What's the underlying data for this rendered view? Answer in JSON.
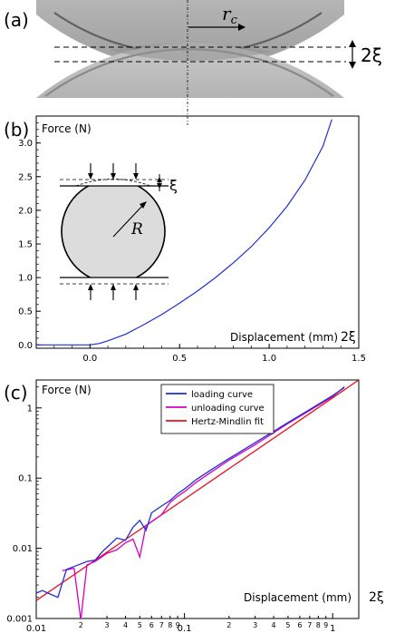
{
  "panel_a": {
    "label": "(a)",
    "radius_label": "r",
    "radius_sub": "c",
    "gap_label": "2ξ"
  },
  "panel_b": {
    "label": "(b)",
    "ylabel": "Force (N)",
    "xlabel": "Displacement (mm)",
    "x_annot": "2ξ",
    "inset_xi": "ξ",
    "inset_R": "R"
  },
  "panel_c": {
    "label": "(c)",
    "ylabel": "Force (N)",
    "xlabel": "Displacement (mm)",
    "x_annot": "2ξ"
  },
  "colors": {
    "loading": "#1f2fd6",
    "unloading": "#d400c4",
    "fit": "#e8111d",
    "sphere_fill": "#d9d9d9"
  },
  "chart_data": [
    {
      "type": "line",
      "panel": "b",
      "ylabel": "Force (N)",
      "xlabel": "Displacement (mm)",
      "xlim": [
        -0.3,
        1.5
      ],
      "ylim": [
        -0.05,
        3.4
      ],
      "xticks": [
        "0.0",
        "0.5",
        "1.0",
        "1.5"
      ],
      "yticks": [
        "0.0",
        "0.5",
        "1.0",
        "1.5",
        "2.0",
        "2.5",
        "3.0"
      ],
      "series": [
        {
          "name": "loading curve",
          "x": [
            -0.3,
            -0.2,
            -0.1,
            -0.05,
            0.0,
            0.05,
            0.1,
            0.2,
            0.3,
            0.4,
            0.5,
            0.6,
            0.7,
            0.8,
            0.9,
            1.0,
            1.1,
            1.2,
            1.3,
            1.35
          ],
          "y": [
            0.0,
            0.0,
            0.0,
            0.0,
            0.0,
            0.02,
            0.06,
            0.16,
            0.3,
            0.45,
            0.62,
            0.8,
            1.0,
            1.22,
            1.46,
            1.74,
            2.06,
            2.45,
            2.95,
            3.35
          ]
        }
      ]
    },
    {
      "type": "line",
      "panel": "c",
      "ylabel": "Force (N)",
      "xlabel": "Displacement (mm)",
      "xscale": "log",
      "yscale": "log",
      "xlim": [
        0.01,
        1.5
      ],
      "ylim": [
        0.001,
        2.5
      ],
      "xticks": [
        "0.01",
        "2",
        "3",
        "4",
        "5",
        "6",
        "7",
        "8",
        "9",
        "0.1",
        "2",
        "3",
        "4",
        "5",
        "6",
        "7",
        "8",
        "9",
        "1"
      ],
      "yticks": [
        "0.001",
        "0.01",
        "0.1",
        "1"
      ],
      "legend": "top-center",
      "series": [
        {
          "name": "loading curve",
          "x": [
            0.01,
            0.011,
            0.012,
            0.014,
            0.016,
            0.018,
            0.02,
            0.022,
            0.025,
            0.028,
            0.031,
            0.035,
            0.04,
            0.045,
            0.05,
            0.055,
            0.06,
            0.07,
            0.08,
            0.09,
            0.1,
            0.12,
            0.15,
            0.2,
            0.3,
            0.5,
            0.7,
            1.0,
            1.2
          ],
          "y": [
            0.0023,
            0.0025,
            0.0023,
            0.002,
            0.005,
            0.0055,
            0.006,
            0.0065,
            0.0068,
            0.009,
            0.011,
            0.014,
            0.013,
            0.02,
            0.025,
            0.018,
            0.032,
            0.04,
            0.048,
            0.06,
            0.07,
            0.095,
            0.13,
            0.19,
            0.32,
            0.62,
            0.95,
            1.5,
            1.95
          ]
        },
        {
          "name": "unloading curve",
          "x": [
            0.015,
            0.018,
            0.02,
            0.022,
            0.025,
            0.03,
            0.035,
            0.04,
            0.045,
            0.05,
            0.055,
            0.06,
            0.07,
            0.08,
            0.09,
            0.1,
            0.12,
            0.15,
            0.2,
            0.3,
            0.5,
            0.7,
            1.0,
            1.2
          ],
          "y": [
            0.0048,
            0.0052,
            0.00095,
            0.0058,
            0.0065,
            0.0085,
            0.0095,
            0.012,
            0.0135,
            0.0075,
            0.021,
            0.024,
            0.03,
            0.045,
            0.055,
            0.064,
            0.087,
            0.12,
            0.18,
            0.3,
            0.6,
            0.92,
            1.45,
            2.0
          ]
        },
        {
          "name": "Hertz-Mindlin fit",
          "x": [
            0.01,
            1.5
          ],
          "y": [
            0.0018,
            2.5
          ]
        }
      ]
    }
  ]
}
